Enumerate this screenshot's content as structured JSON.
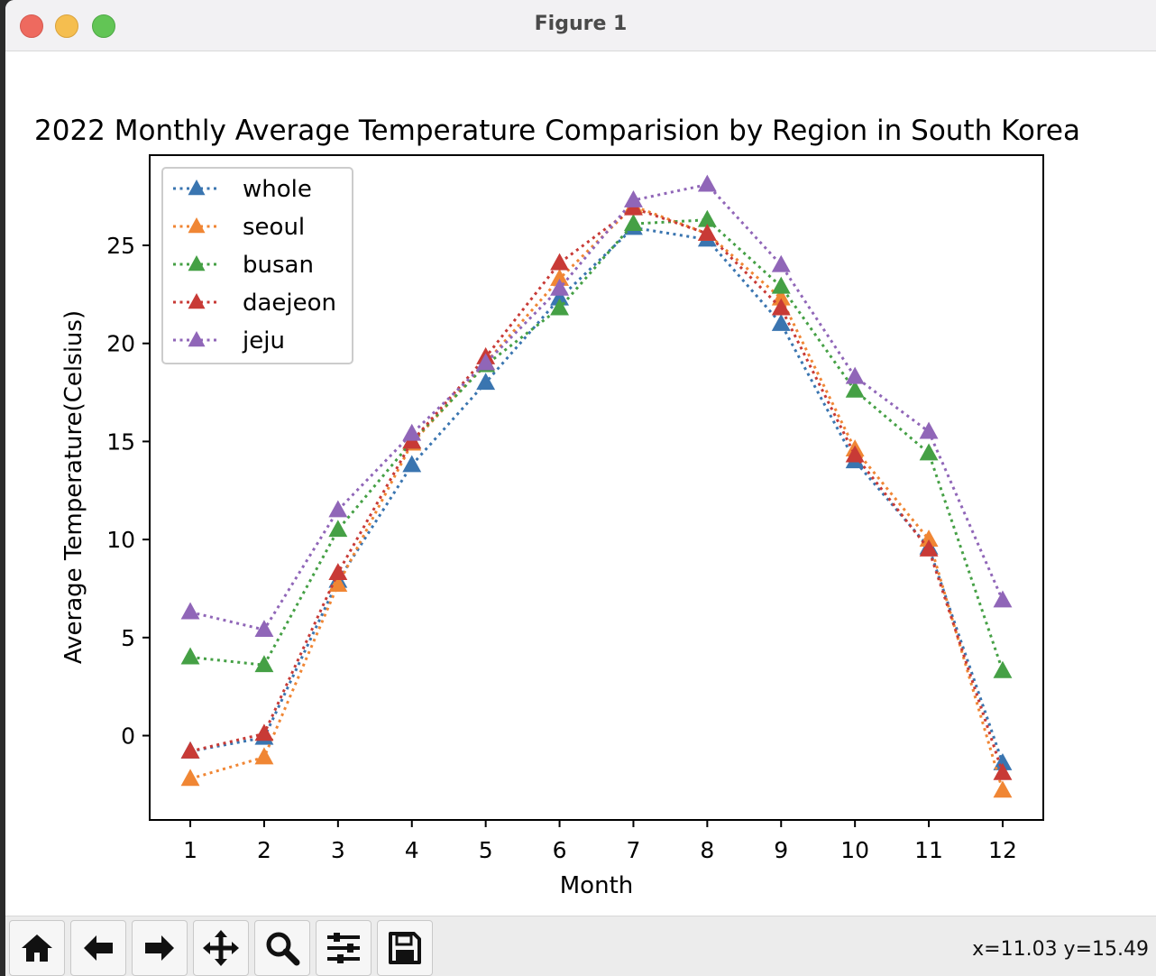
{
  "window": {
    "title": "Figure 1"
  },
  "toolbar": {
    "tools": [
      {
        "name": "home-icon"
      },
      {
        "name": "back-arrow-icon"
      },
      {
        "name": "forward-arrow-icon"
      },
      {
        "name": "pan-icon"
      },
      {
        "name": "zoom-icon"
      },
      {
        "name": "configure-subplots-icon"
      },
      {
        "name": "save-icon"
      }
    ],
    "coords": "x=11.03 y=15.49"
  },
  "chart_data": {
    "type": "line",
    "title": "2022 Monthly Average Temperature Comparision by Region in South Korea",
    "xlabel": "Month",
    "ylabel": "Average Temperature(Celsius)",
    "x": [
      1,
      2,
      3,
      4,
      5,
      6,
      7,
      8,
      9,
      10,
      11,
      12
    ],
    "xticks": [
      "1",
      "2",
      "3",
      "4",
      "5",
      "6",
      "7",
      "8",
      "9",
      "10",
      "11",
      "12"
    ],
    "yticks": [
      "0",
      "5",
      "10",
      "15",
      "20",
      "25"
    ],
    "xlim": [
      0.45,
      12.55
    ],
    "ylim": [
      -4.3,
      29.6
    ],
    "legend_position": "upper-left",
    "marker": "triangle-up",
    "linestyle": "dotted",
    "series": [
      {
        "name": "whole",
        "color": "#3a75b0",
        "values": [
          -0.8,
          -0.1,
          7.9,
          13.8,
          18.0,
          22.3,
          25.9,
          25.3,
          21.0,
          14.0,
          9.6,
          -1.4
        ]
      },
      {
        "name": "seoul",
        "color": "#f08634",
        "values": [
          -2.2,
          -1.1,
          7.7,
          14.9,
          19.0,
          23.3,
          27.0,
          25.6,
          22.3,
          14.6,
          10.0,
          -2.8
        ]
      },
      {
        "name": "busan",
        "color": "#45a045",
        "values": [
          4.0,
          3.6,
          10.5,
          15.0,
          18.9,
          21.8,
          26.1,
          26.3,
          22.9,
          17.6,
          14.4,
          3.3
        ]
      },
      {
        "name": "daejeon",
        "color": "#c83a36",
        "values": [
          -0.8,
          0.1,
          8.3,
          15.0,
          19.3,
          24.1,
          26.9,
          25.6,
          21.8,
          14.3,
          9.5,
          -1.9
        ]
      },
      {
        "name": "jeju",
        "color": "#9066b8",
        "values": [
          6.3,
          5.4,
          11.5,
          15.4,
          19.0,
          22.8,
          27.3,
          28.1,
          24.0,
          18.3,
          15.5,
          6.9
        ]
      }
    ]
  }
}
